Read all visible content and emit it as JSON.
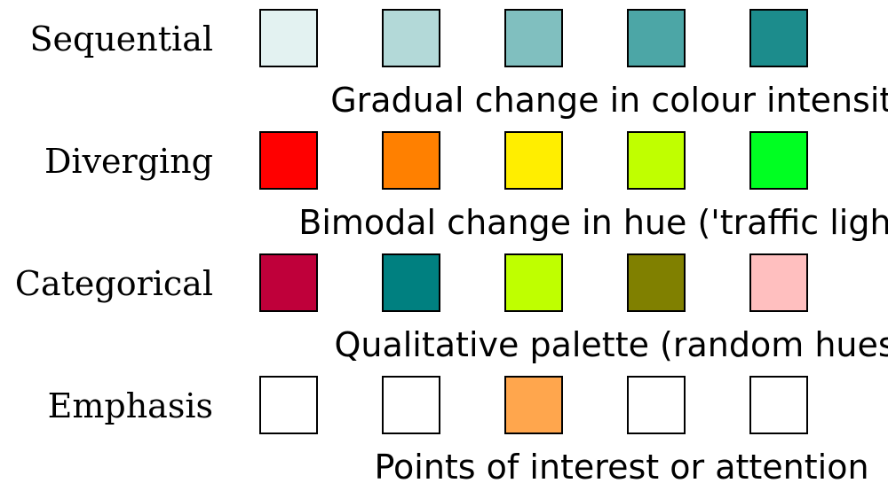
{
  "rows": [
    {
      "label": "Sequential",
      "caption": "Gradual change in colour intensity",
      "colors": [
        "#e3f2f1",
        "#b3d9d8",
        "#80bfbf",
        "#4ca6a6",
        "#1c8c8c"
      ]
    },
    {
      "label": "Diverging",
      "caption": "Bimodal change in hue ('traffic light')",
      "colors": [
        "#ff0000",
        "#ff8000",
        "#ffee00",
        "#c0ff00",
        "#00ff22"
      ]
    },
    {
      "label": "Categorical",
      "caption": "Qualitative palette (random hues)",
      "colors": [
        "#bf003a",
        "#008080",
        "#bfff00",
        "#808000",
        "#ffbfbf"
      ]
    },
    {
      "label": "Emphasis",
      "caption": "Points of interest or attention",
      "colors": [
        "#ffffff",
        "#ffffff",
        "#ffa64d",
        "#ffffff",
        "#ffffff"
      ]
    }
  ]
}
